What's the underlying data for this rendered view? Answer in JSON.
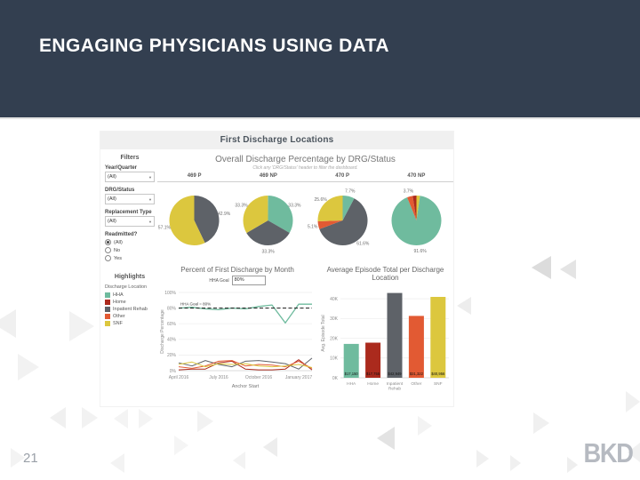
{
  "slide": {
    "title": "ENGAGING PHYSICIANS USING DATA",
    "page_number": "21",
    "logo": "BKD",
    "colors": {
      "header_bg": "#333F50",
      "title_text": "#FFFFFF"
    }
  },
  "dashboard": {
    "title": "First Discharge Locations",
    "filters": {
      "heading": "Filters",
      "dropdowns": [
        {
          "label": "Year/Quarter",
          "value": "(All)"
        },
        {
          "label": "DRG/Status",
          "value": "(All)"
        },
        {
          "label": "Replacement Type",
          "value": "(All)"
        }
      ],
      "radio_group": {
        "label": "Readmitted?",
        "options": [
          "(All)",
          "No",
          "Yes"
        ],
        "selected": "(All)"
      }
    },
    "highlights": {
      "heading": "Highlights",
      "legend_title": "Discharge Location",
      "legend": [
        {
          "label": "HHA",
          "color": "#6fbb9e"
        },
        {
          "label": "Home",
          "color": "#ab2a1d"
        },
        {
          "label": "Inpatient Rehab",
          "color": "#5e6268"
        },
        {
          "label": "Other",
          "color": "#e25a33"
        },
        {
          "label": "SNF",
          "color": "#dcc73e"
        }
      ]
    }
  },
  "chart_data": [
    {
      "type": "pie",
      "title": "Overall Discharge Percentage by DRG/Status",
      "subtitle": "Click any 'DRG/Status' header to filter the dashboard.",
      "pies": [
        {
          "header": "469 P",
          "slices": [
            {
              "label": "Inpatient Rehab",
              "pct": 42.9,
              "pct_label": "42.9%",
              "color": "#5e6268",
              "show_label": true
            },
            {
              "label": "SNF",
              "pct": 57.1,
              "pct_label": "57.1%",
              "color": "#dcc73e",
              "show_label": true
            }
          ]
        },
        {
          "header": "469 NP",
          "slices": [
            {
              "label": "HHA",
              "pct": 33.3,
              "pct_label": "33.3%",
              "color": "#6fbb9e",
              "show_label": true
            },
            {
              "label": "Inpatient Rehab",
              "pct": 33.3,
              "pct_label": "33.3%",
              "color": "#5e6268",
              "show_label": true
            },
            {
              "label": "SNF",
              "pct": 33.3,
              "pct_label": "33.3%",
              "color": "#dcc73e",
              "show_label": true
            }
          ]
        },
        {
          "header": "470 P",
          "slices": [
            {
              "label": "HHA",
              "pct": 7.7,
              "pct_label": "7.7%",
              "color": "#6fbb9e",
              "show_label": true
            },
            {
              "label": "Inpatient Rehab",
              "pct": 61.6,
              "pct_label": "61.6%",
              "color": "#5e6268",
              "show_label": true
            },
            {
              "label": "Other",
              "pct": 5.1,
              "pct_label": "5.1%",
              "color": "#e25a33",
              "show_label": true
            },
            {
              "label": "SNF",
              "pct": 25.6,
              "pct_label": "25.6%",
              "color": "#dcc73e",
              "show_label": true
            }
          ]
        },
        {
          "header": "470 NP",
          "slices": [
            {
              "label": "SNF",
              "pct": 2.3,
              "pct_label": "",
              "color": "#dcc73e",
              "show_label": false
            },
            {
              "label": "HHA",
              "pct": 91.6,
              "pct_label": "91.6%",
              "color": "#6fbb9e",
              "show_label": true
            },
            {
              "label": "Other",
              "pct": 3.7,
              "pct_label": "3.7%",
              "color": "#e25a33",
              "show_label": true
            },
            {
              "label": "Home",
              "pct": 2.4,
              "pct_label": "",
              "color": "#ab2a1d",
              "show_label": false
            }
          ]
        }
      ]
    },
    {
      "type": "line",
      "title": "Percent of First Discharge by Month",
      "control": {
        "label": "HHA Goal",
        "value": "80%"
      },
      "xlabel": "Anchor Start",
      "ylabel": "Discharge Percentage",
      "x_ticks": [
        "April 2016",
        "July 2016",
        "October 2016",
        "January 2017"
      ],
      "x_tick_indices": [
        0,
        3,
        6,
        9
      ],
      "x_count": 11,
      "y_ticks": [
        "0%",
        "20%",
        "40%",
        "60%",
        "80%",
        "100%"
      ],
      "ylim": [
        0,
        100
      ],
      "reference_line": {
        "label": "HHA Goal = 80%",
        "value": 80
      },
      "series": [
        {
          "name": "HHA",
          "color": "#6fbb9e",
          "values": [
            80,
            81,
            79,
            78,
            80,
            79,
            82,
            84,
            61,
            85,
            85
          ]
        },
        {
          "name": "Home",
          "color": "#ab2a1d",
          "values": [
            1,
            2,
            2,
            10,
            12,
            2,
            1,
            1,
            2,
            14,
            1
          ]
        },
        {
          "name": "Inpatient Rehab",
          "color": "#5e6268",
          "values": [
            10,
            6,
            13,
            8,
            5,
            12,
            13,
            11,
            9,
            2,
            16
          ]
        },
        {
          "name": "Other",
          "color": "#e25a33",
          "values": [
            5,
            3,
            6,
            12,
            13,
            6,
            8,
            7,
            5,
            12,
            3
          ]
        },
        {
          "name": "SNF",
          "color": "#dcc73e",
          "values": [
            8,
            11,
            5,
            9,
            8,
            9,
            6,
            5,
            6,
            8,
            4
          ]
        }
      ]
    },
    {
      "type": "bar",
      "title": "Average Episode Total per Discharge Location",
      "ylabel": "Avg. Episode Total",
      "y_ticks": [
        "0K",
        "10K",
        "20K",
        "30K",
        "40K"
      ],
      "ylim": [
        0,
        45000
      ],
      "categories": [
        "HHA",
        "Home",
        "Inpatient Rehab",
        "Other",
        "SNF"
      ],
      "values": [
        17150,
        17755,
        42949,
        31322,
        40956
      ],
      "bar_labels": [
        "$17,150",
        "$17,755",
        "$42,949",
        "$31,322",
        "$40,956"
      ],
      "colors": [
        "#6fbb9e",
        "#ab2a1d",
        "#5e6268",
        "#e25a33",
        "#dcc73e"
      ]
    }
  ]
}
